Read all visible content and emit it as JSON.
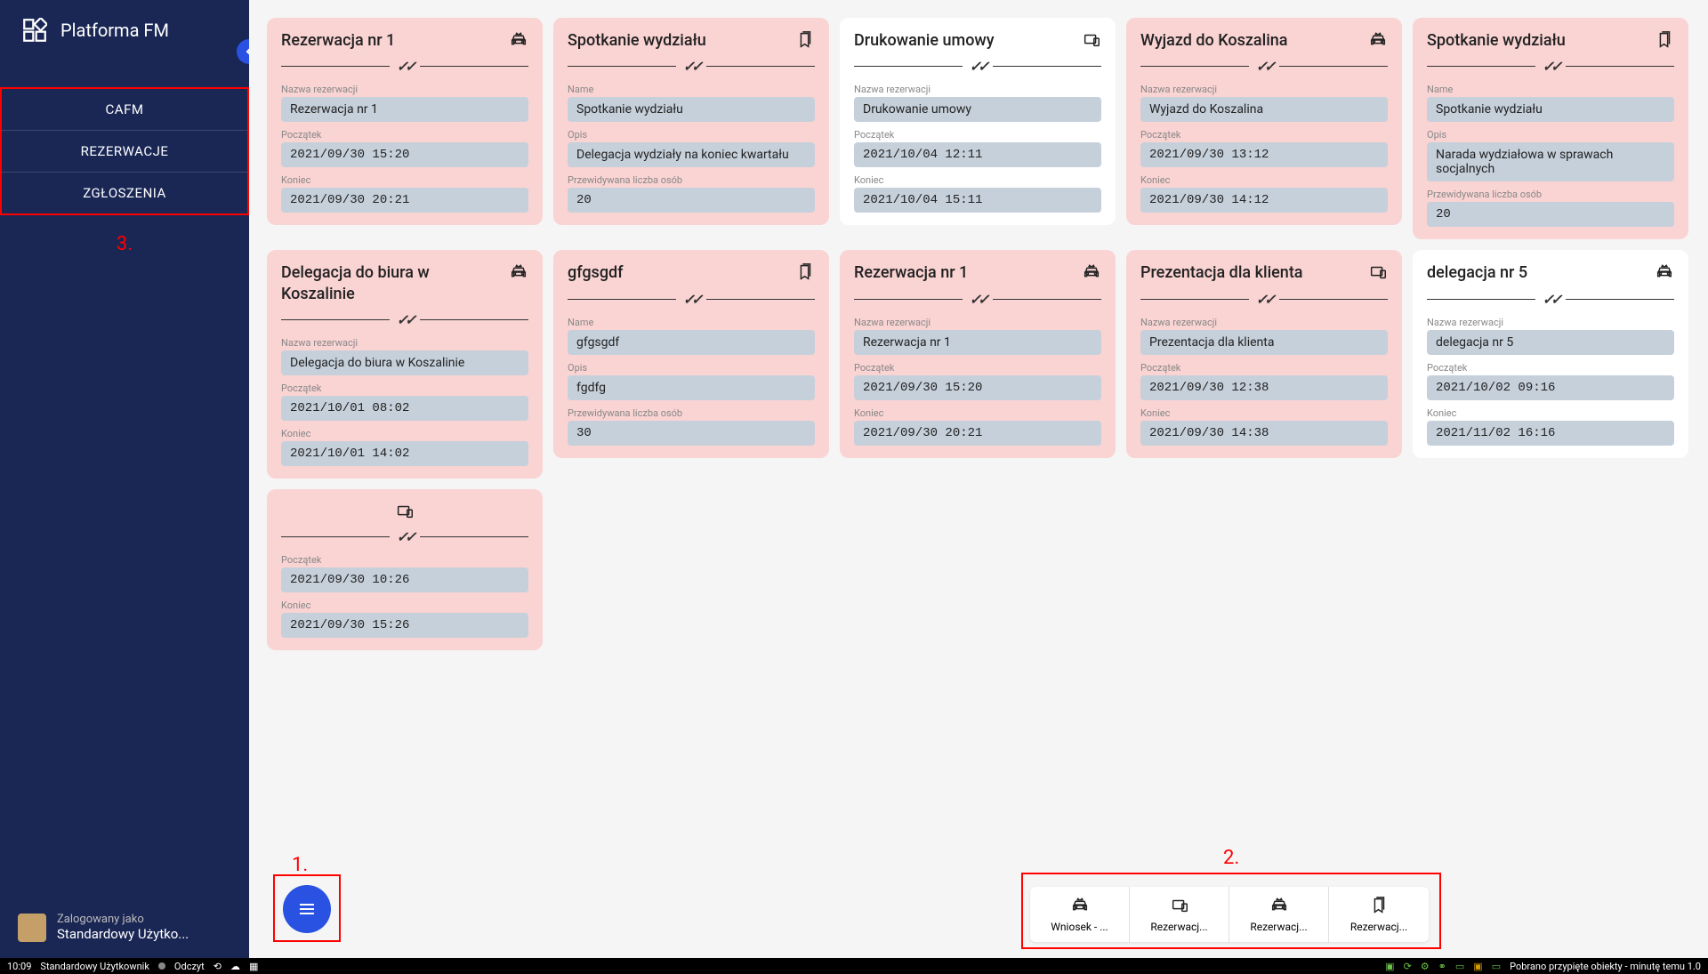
{
  "sidebar": {
    "title": "Platforma FM",
    "nav": [
      "CAFM",
      "REZERWACJE",
      "ZGŁOSZENIA"
    ],
    "annotation3": "3.",
    "user_label": "Zalogowany jako",
    "user_name": "Standardowy Użytko..."
  },
  "colors": {
    "sidebar_bg": "#1a2755",
    "card_pink": "#fad3d3",
    "card_white": "#ffffff",
    "field_bg": "#c6d0db",
    "accent": "#2952e3",
    "annotation": "#ff0000"
  },
  "labels": {
    "nazwa": "Nazwa rezerwacji",
    "name": "Name",
    "poczatek": "Początek",
    "koniec": "Koniec",
    "opis": "Opis",
    "liczba": "Przewidywana liczba osób"
  },
  "cards": [
    {
      "bg": "pink",
      "title": "Rezerwacja nr 1",
      "icon": "car",
      "fields": [
        [
          "nazwa",
          "Rezerwacja nr 1",
          "sans"
        ],
        [
          "poczatek",
          "2021/09/30 15:20",
          "mono"
        ],
        [
          "koniec",
          "2021/09/30 20:21",
          "mono"
        ]
      ]
    },
    {
      "bg": "pink",
      "title": "Spotkanie wydziału",
      "icon": "bookmark",
      "fields": [
        [
          "name",
          "Spotkanie wydziału",
          "sans"
        ],
        [
          "opis",
          "Delegacja wydziały na koniec kwartału",
          "sans"
        ],
        [
          "liczba",
          "20",
          "mono"
        ]
      ]
    },
    {
      "bg": "white",
      "title": "Drukowanie umowy",
      "icon": "desktop",
      "fields": [
        [
          "nazwa",
          "Drukowanie umowy",
          "sans"
        ],
        [
          "poczatek",
          "2021/10/04 12:11",
          "mono"
        ],
        [
          "koniec",
          "2021/10/04 15:11",
          "mono"
        ]
      ]
    },
    {
      "bg": "pink",
      "title": "Wyjazd do Koszalina",
      "icon": "car",
      "fields": [
        [
          "nazwa",
          "Wyjazd do Koszalina",
          "sans"
        ],
        [
          "poczatek",
          "2021/09/30 13:12",
          "mono"
        ],
        [
          "koniec",
          "2021/09/30 14:12",
          "mono"
        ]
      ]
    },
    {
      "bg": "pink",
      "title": "Spotkanie wydziału",
      "icon": "bookmark",
      "fields": [
        [
          "name",
          "Spotkanie wydziału",
          "sans"
        ],
        [
          "opis",
          "Narada wydziałowa w sprawach socjalnych",
          "sans"
        ],
        [
          "liczba",
          "20",
          "mono"
        ]
      ]
    },
    {
      "bg": "pink",
      "title": "Delegacja do biura w Koszalinie",
      "icon": "car",
      "fields": [
        [
          "nazwa",
          "Delegacja do biura w Koszalinie",
          "sans"
        ],
        [
          "poczatek",
          "2021/10/01 08:02",
          "mono"
        ],
        [
          "koniec",
          "2021/10/01 14:02",
          "mono"
        ]
      ]
    },
    {
      "bg": "pink",
      "title": "gfgsgdf",
      "icon": "bookmark",
      "fields": [
        [
          "name",
          "gfgsgdf",
          "sans"
        ],
        [
          "opis",
          "fgdfg",
          "sans"
        ],
        [
          "liczba",
          "30",
          "mono"
        ]
      ]
    },
    {
      "bg": "pink",
      "title": "Rezerwacja nr 1",
      "icon": "car",
      "fields": [
        [
          "nazwa",
          "Rezerwacja nr 1",
          "sans"
        ],
        [
          "poczatek",
          "2021/09/30 15:20",
          "mono"
        ],
        [
          "koniec",
          "2021/09/30 20:21",
          "mono"
        ]
      ]
    },
    {
      "bg": "pink",
      "title": "Prezentacja dla klienta",
      "icon": "desktop",
      "fields": [
        [
          "nazwa",
          "Prezentacja dla klienta",
          "sans"
        ],
        [
          "poczatek",
          "2021/09/30 12:38",
          "mono"
        ],
        [
          "koniec",
          "2021/09/30 14:38",
          "mono"
        ]
      ]
    },
    {
      "bg": "white",
      "title": "delegacja nr 5",
      "icon": "car",
      "fields": [
        [
          "nazwa",
          "delegacja nr 5",
          "sans"
        ],
        [
          "poczatek",
          "2021/10/02 09:16",
          "mono"
        ],
        [
          "koniec",
          "2021/11/02 16:16",
          "mono"
        ]
      ]
    },
    {
      "bg": "pink",
      "title": "",
      "icon": "desktop",
      "title_icon_only": true,
      "fields": [
        [
          "poczatek",
          "2021/09/30 10:26",
          "mono"
        ],
        [
          "koniec",
          "2021/09/30 15:26",
          "mono"
        ]
      ]
    }
  ],
  "bottom_tabs": [
    {
      "icon": "car",
      "label": "Wniosek - ..."
    },
    {
      "icon": "desktop",
      "label": "Rezerwacj..."
    },
    {
      "icon": "car",
      "label": "Rezerwacj..."
    },
    {
      "icon": "bookmark",
      "label": "Rezerwacj..."
    }
  ],
  "annotations": {
    "a1": "1.",
    "a2": "2."
  },
  "statusbar": {
    "time": "10:09",
    "user": "Standardowy Użytkownik",
    "mode": "Odczyt",
    "right": "Pobrano przypięte obiekty - minutę temu  1.0"
  }
}
